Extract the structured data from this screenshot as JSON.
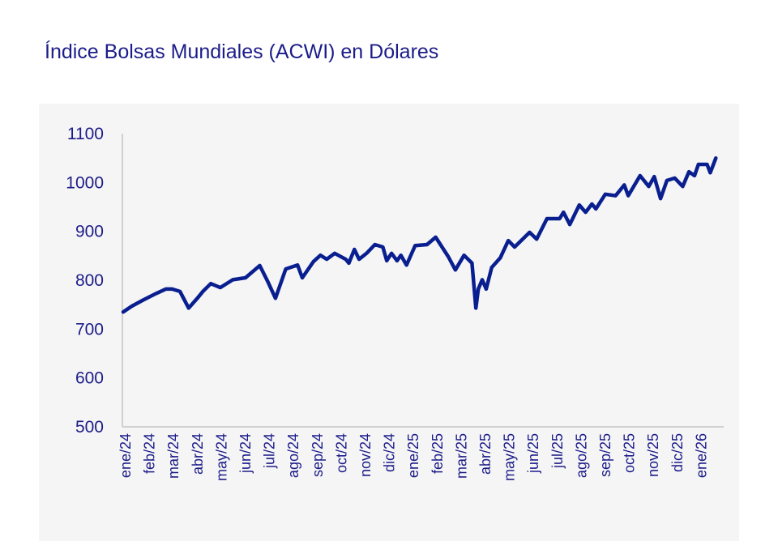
{
  "title": "Índice Bolsas Mundiales (ACWI) en Dólares",
  "chart_data": {
    "type": "line",
    "title": "Índice Bolsas Mundiales (ACWI) en Dólares",
    "xlabel": "",
    "ylabel": "",
    "ylim": [
      500,
      1100
    ],
    "yticks": [
      500,
      600,
      700,
      800,
      900,
      1000,
      1100
    ],
    "xticks": [
      "ene/24",
      "feb/24",
      "mar/24",
      "abr/24",
      "may/24",
      "jun/24",
      "jul/24",
      "ago/24",
      "sep/24",
      "oct/24",
      "nov/24",
      "dic/24",
      "ene/25",
      "feb/25",
      "mar/25",
      "abr/25",
      "may/25",
      "jun/25",
      "jul/25",
      "ago/25",
      "sep/25",
      "oct/25",
      "nov/25",
      "dic/25",
      "ene/26"
    ],
    "grid": false,
    "legend": "none",
    "color": "#0a1f8f",
    "series": [
      {
        "x": [
          "2024-01-01",
          "2024-01-12",
          "2024-01-27",
          "2024-02-12",
          "2024-02-24",
          "2024-03-03",
          "2024-03-13",
          "2024-03-24",
          "2024-04-04",
          "2024-04-11",
          "2024-04-21",
          "2024-05-03",
          "2024-05-19",
          "2024-06-04",
          "2024-06-22",
          "2024-07-02",
          "2024-07-12",
          "2024-07-25",
          "2024-08-09",
          "2024-08-15",
          "2024-08-29",
          "2024-09-07",
          "2024-09-15",
          "2024-09-25",
          "2024-10-09",
          "2024-10-13",
          "2024-10-20",
          "2024-10-26",
          "2024-11-05",
          "2024-11-15",
          "2024-11-25",
          "2024-11-30",
          "2024-12-06",
          "2024-12-13",
          "2024-12-18",
          "2024-12-25",
          "2025-01-05",
          "2025-01-20",
          "2025-01-31",
          "2025-02-16",
          "2025-02-25",
          "2025-03-08",
          "2025-03-18",
          "2025-03-23",
          "2025-03-26",
          "2025-03-31",
          "2025-04-05",
          "2025-04-12",
          "2025-04-23",
          "2025-05-03",
          "2025-05-11",
          "2025-05-30",
          "2025-06-08",
          "2025-06-21",
          "2025-07-07",
          "2025-07-12",
          "2025-07-20",
          "2025-08-01",
          "2025-08-09",
          "2025-08-17",
          "2025-08-22",
          "2025-09-03",
          "2025-09-16",
          "2025-09-27",
          "2025-10-02",
          "2025-10-17",
          "2025-10-28",
          "2025-11-04",
          "2025-11-12",
          "2025-11-20",
          "2025-11-30",
          "2025-12-10",
          "2025-12-18",
          "2025-12-25",
          "2025-12-30",
          "2026-01-10",
          "2026-01-14",
          "2026-01-21"
        ],
        "y": [
          735,
          747,
          760,
          773,
          782,
          782,
          777,
          743,
          763,
          777,
          793,
          785,
          801,
          805,
          830,
          798,
          763,
          823,
          831,
          805,
          838,
          851,
          843,
          855,
          843,
          835,
          863,
          843,
          856,
          873,
          868,
          840,
          855,
          840,
          851,
          831,
          871,
          873,
          888,
          848,
          821,
          851,
          835,
          743,
          782,
          801,
          782,
          826,
          846,
          881,
          868,
          898,
          884,
          926,
          926,
          939,
          914,
          954,
          939,
          956,
          946,
          976,
          973,
          995,
          973,
          1014,
          992,
          1012,
          967,
          1004,
          1009,
          992,
          1022,
          1014,
          1037,
          1037,
          1020,
          1050
        ]
      }
    ]
  }
}
